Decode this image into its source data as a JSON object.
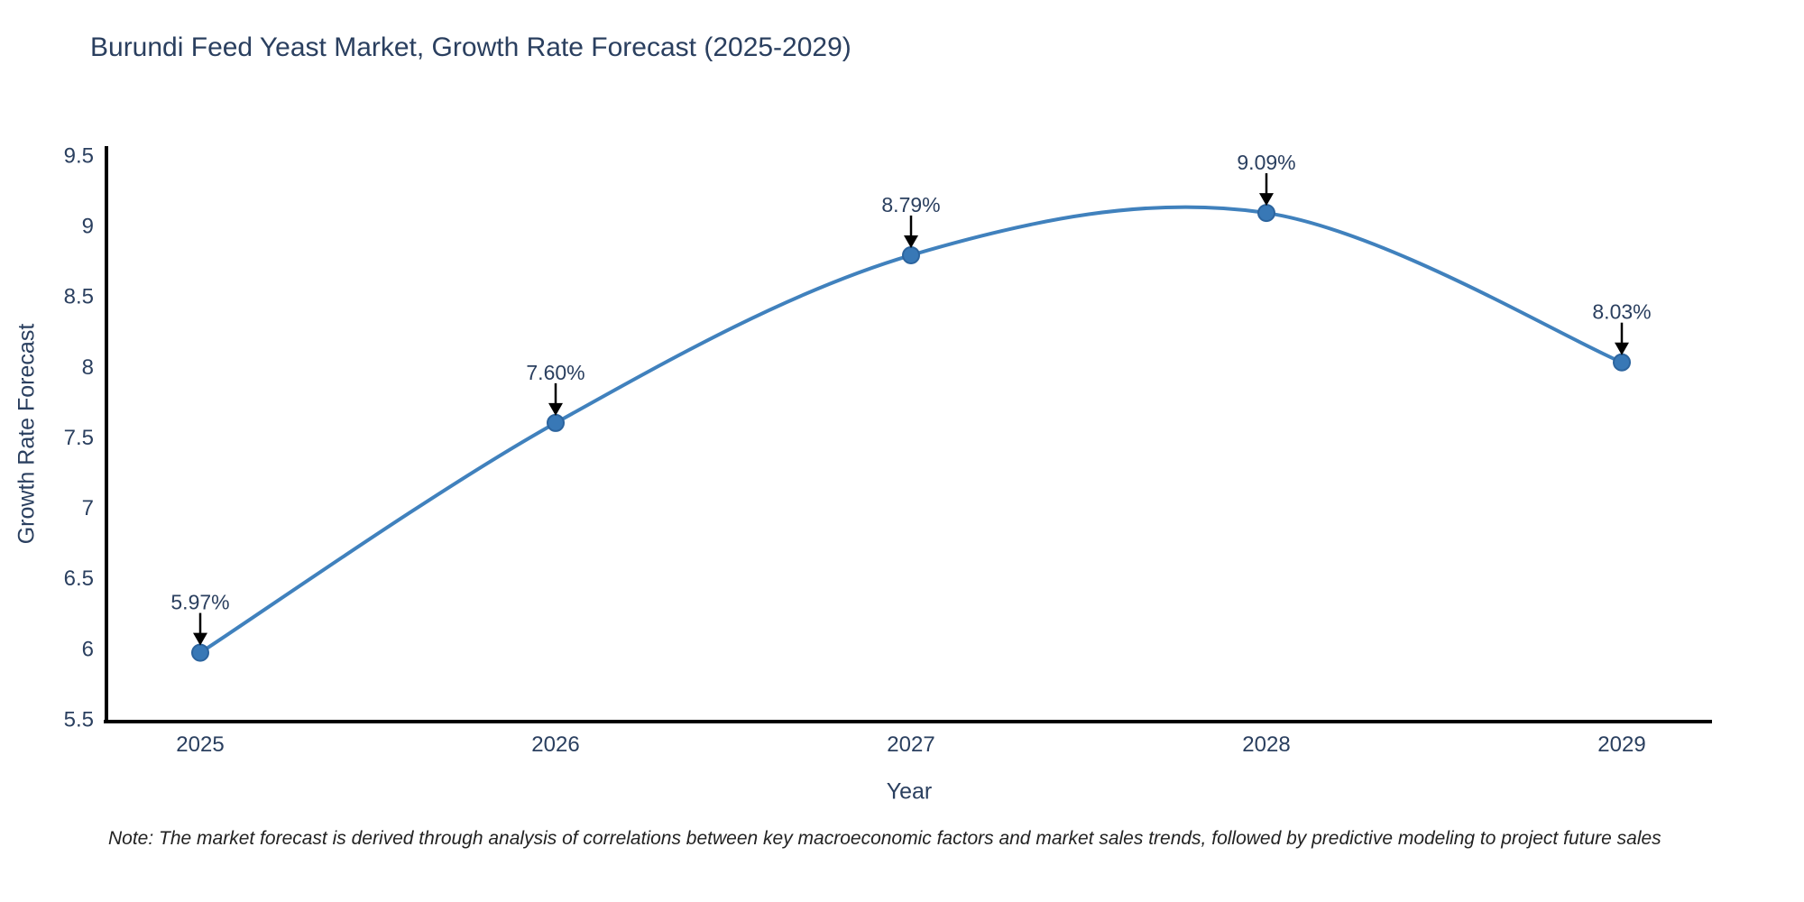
{
  "chart_data": {
    "type": "line",
    "title": "Burundi Feed Yeast Market, Growth Rate Forecast (2025-2029)",
    "xlabel": "Year",
    "ylabel": "Growth Rate Forecast",
    "categories": [
      "2025",
      "2026",
      "2027",
      "2028",
      "2029"
    ],
    "values": [
      5.97,
      7.6,
      8.79,
      9.09,
      8.03
    ],
    "point_labels": [
      "5.97%",
      "7.60%",
      "8.79%",
      "9.09%",
      "8.03%"
    ],
    "ylim": [
      5.5,
      9.5
    ],
    "yticks": [
      "5.5",
      "6",
      "6.5",
      "7",
      "7.5",
      "8",
      "8.5",
      "9",
      "9.5"
    ],
    "line_shape": "spline",
    "grid": false,
    "legend_position": "none",
    "colors": {
      "line": "#4081bd",
      "marker_fill": "#3878b6",
      "marker_edge": "#2c649e",
      "axis": "#000000",
      "tick_text": "#2a3f5f",
      "annotation_text": "#2a3f5f",
      "annotation_arrow": "#000000"
    }
  },
  "footer": {
    "note": "Note: The market forecast is derived through analysis of correlations between key macroeconomic factors and market sales trends, followed by predictive modeling to project future sales"
  }
}
